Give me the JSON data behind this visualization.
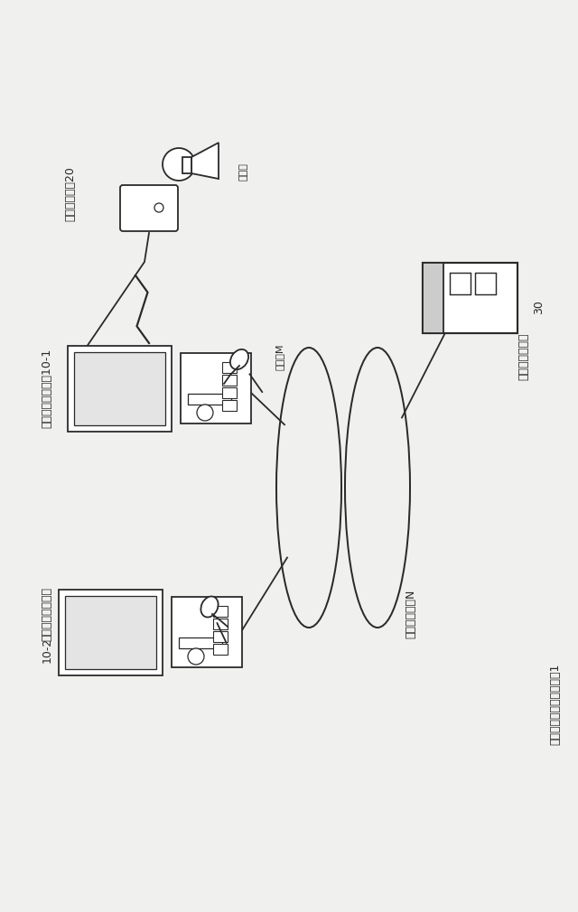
{
  "bg_color": "#f0f0ee",
  "line_color": "#2a2a2a",
  "labels": {
    "karaoke_system_1": "カラオケシステヤ10-1",
    "karaoke_system_2_a": "カラオケシステム",
    "karaoke_system_2_b": "10-2",
    "remote_device": "リモコン装缠20",
    "user": "ユーザ",
    "mike": "マイクM",
    "network": "ネットワークN",
    "server_a": "管理サーバ装缮",
    "server_b": "30",
    "system_title": "カラオケ用通信システヤ1"
  }
}
